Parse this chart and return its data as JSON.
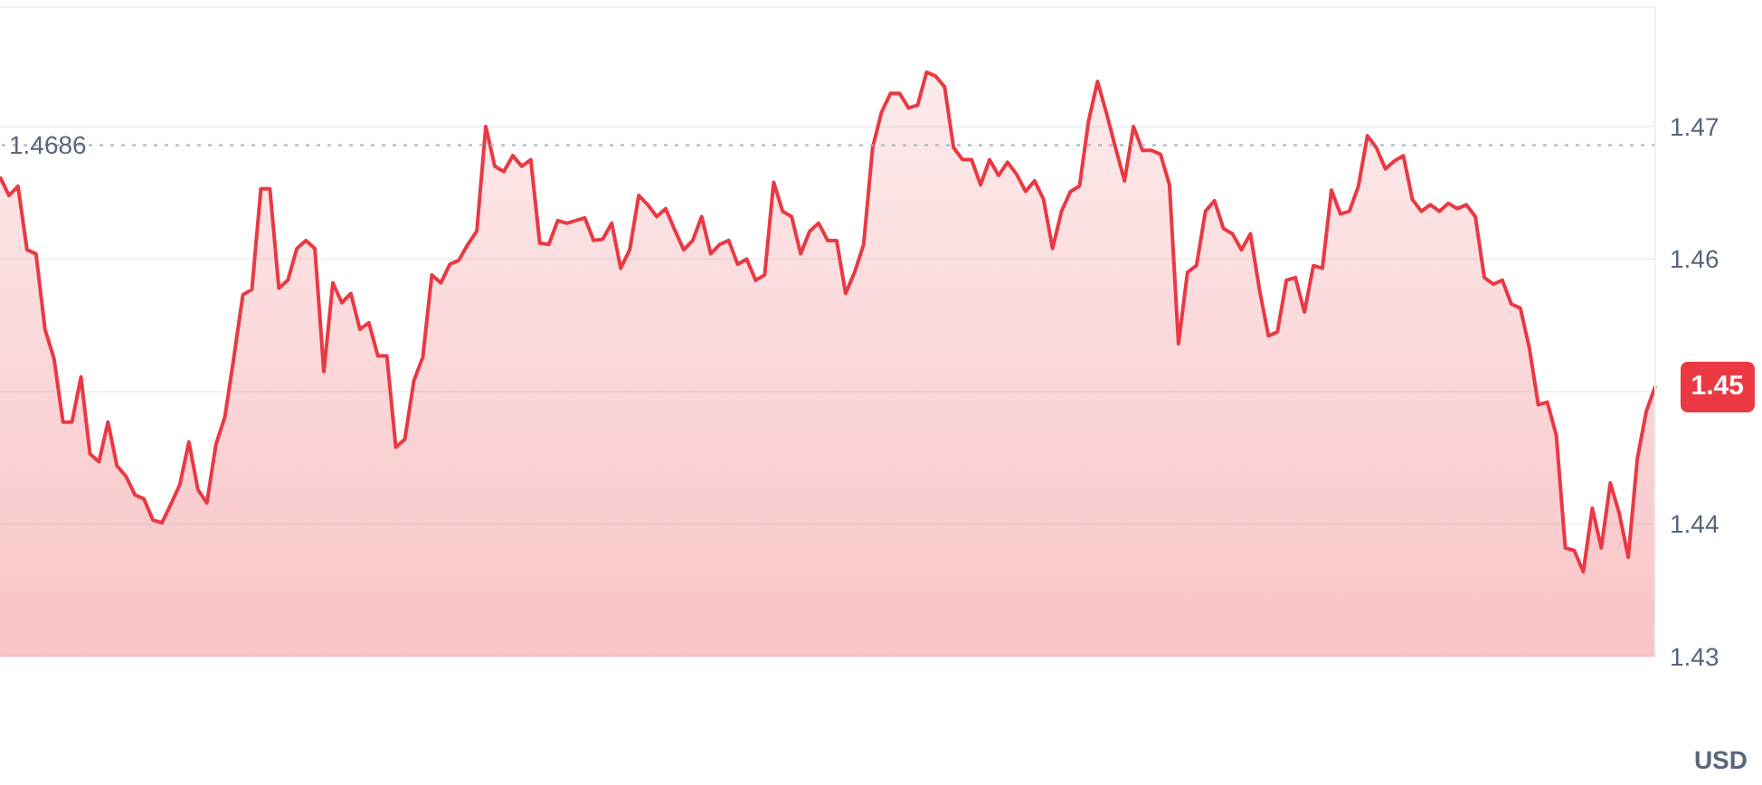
{
  "chart_data": {
    "type": "area",
    "ylabel": "USD",
    "categories": [
      null,
      null,
      null,
      null,
      null,
      null,
      null,
      null,
      null,
      null,
      null,
      null,
      null,
      null,
      null,
      null,
      null,
      null,
      null,
      null,
      null,
      null,
      null,
      null,
      null,
      null,
      null,
      null,
      null,
      null,
      null,
      null,
      null,
      null,
      null,
      null,
      null,
      null,
      null,
      null,
      null,
      null,
      null,
      null,
      null,
      null,
      null,
      null,
      null,
      null,
      null,
      null,
      null,
      null,
      null,
      null,
      null,
      null,
      null,
      null,
      null,
      null,
      null,
      null,
      null,
      null,
      null,
      null,
      null,
      null,
      null,
      null,
      null,
      null,
      null,
      null,
      null,
      null,
      null,
      null,
      null,
      null,
      null,
      null,
      null,
      null,
      null,
      null,
      null,
      null,
      null,
      null,
      null,
      null,
      null,
      null,
      null,
      null,
      null,
      null,
      null,
      null,
      null,
      null,
      null,
      null,
      null,
      null,
      null,
      null,
      null,
      null,
      null,
      null,
      null,
      null,
      null,
      null,
      null,
      null,
      null,
      null,
      null,
      null,
      null,
      null,
      null,
      null,
      null,
      null,
      null,
      null,
      null,
      null,
      null,
      null,
      null,
      null,
      null,
      null,
      null,
      null,
      null,
      null,
      null,
      null,
      null,
      null,
      null,
      null,
      null,
      null,
      null,
      null,
      null,
      null,
      null,
      null,
      null,
      null,
      null,
      null,
      null,
      null,
      null,
      null,
      null,
      null,
      null,
      null,
      null,
      null,
      null,
      null,
      null,
      null,
      null,
      null,
      null,
      null,
      null,
      null,
      null,
      null,
      null
    ],
    "series": [
      {
        "color": "#ea3943",
        "values": [
          1.4662,
          1.4648,
          1.4655,
          1.4607,
          1.4604,
          1.4547,
          1.4525,
          1.4477,
          1.4477,
          1.4511,
          1.4453,
          1.4447,
          1.4477,
          1.4444,
          1.4436,
          1.4422,
          1.4419,
          1.4403,
          1.4401,
          1.4415,
          1.443,
          1.4462,
          1.4426,
          1.4416,
          1.446,
          1.4481,
          1.4526,
          1.4573,
          1.4577,
          1.4653,
          1.4653,
          1.4578,
          1.4584,
          1.4608,
          1.4614,
          1.4608,
          1.4515,
          1.4582,
          1.4567,
          1.4574,
          1.4547,
          1.4552,
          1.4527,
          1.4527,
          1.4458,
          1.4464,
          1.4508,
          1.4526,
          1.4588,
          1.4582,
          1.4596,
          1.4599,
          1.4611,
          1.4621,
          1.47,
          1.467,
          1.4666,
          1.4678,
          1.467,
          1.4675,
          1.4612,
          1.4611,
          1.4629,
          1.4627,
          1.4629,
          1.4631,
          1.4614,
          1.4615,
          1.4627,
          1.4593,
          1.4607,
          1.4648,
          1.4641,
          1.4632,
          1.4638,
          1.4622,
          1.4607,
          1.4614,
          1.4632,
          1.4604,
          1.4611,
          1.4614,
          1.4596,
          1.46,
          1.4584,
          1.4588,
          1.4658,
          1.4636,
          1.4632,
          1.4604,
          1.4621,
          1.4627,
          1.4614,
          1.4614,
          1.4574,
          1.459,
          1.4611,
          1.4684,
          1.4711,
          1.4725,
          1.4725,
          1.4714,
          1.4716,
          1.4741,
          1.4738,
          1.473,
          1.4684,
          1.4675,
          1.4675,
          1.4656,
          1.4675,
          1.4663,
          1.4673,
          1.4664,
          1.4651,
          1.4659,
          1.4645,
          1.4608,
          1.4636,
          1.4651,
          1.4655,
          1.4704,
          1.4734,
          1.471,
          1.4684,
          1.4659,
          1.47,
          1.4682,
          1.4682,
          1.4679,
          1.4656,
          1.4536,
          1.459,
          1.4595,
          1.4636,
          1.4644,
          1.4623,
          1.4619,
          1.4607,
          1.4619,
          1.4577,
          1.4542,
          1.4545,
          1.4584,
          1.4586,
          1.456,
          1.4595,
          1.4593,
          1.4652,
          1.4634,
          1.4636,
          1.4655,
          1.4693,
          1.4684,
          1.4668,
          1.4674,
          1.4678,
          1.4645,
          1.4636,
          1.4641,
          1.4636,
          1.4642,
          1.4638,
          1.4641,
          1.4632,
          1.4586,
          1.4581,
          1.4584,
          1.4566,
          1.4563,
          1.4533,
          1.449,
          1.4492,
          1.4467,
          1.4382,
          1.438,
          1.4364,
          1.4412,
          1.4382,
          1.4431,
          1.4408,
          1.4375,
          1.4449,
          1.4485,
          1.4504
        ]
      }
    ],
    "ylim": [
      1.43,
      1.479
    ],
    "yticks": [
      1.43,
      1.44,
      {
        "value": 1.45,
        "label": null
      },
      1.46,
      1.47
    ],
    "grid": "y",
    "tick_labels": "y",
    "ref_lines": [
      {
        "axis": "y",
        "value": 1.4686,
        "label": "1.4686",
        "color": "#a6b0c3",
        "line_style": "dotted"
      }
    ],
    "annotations": [
      "1.45"
    ]
  }
}
